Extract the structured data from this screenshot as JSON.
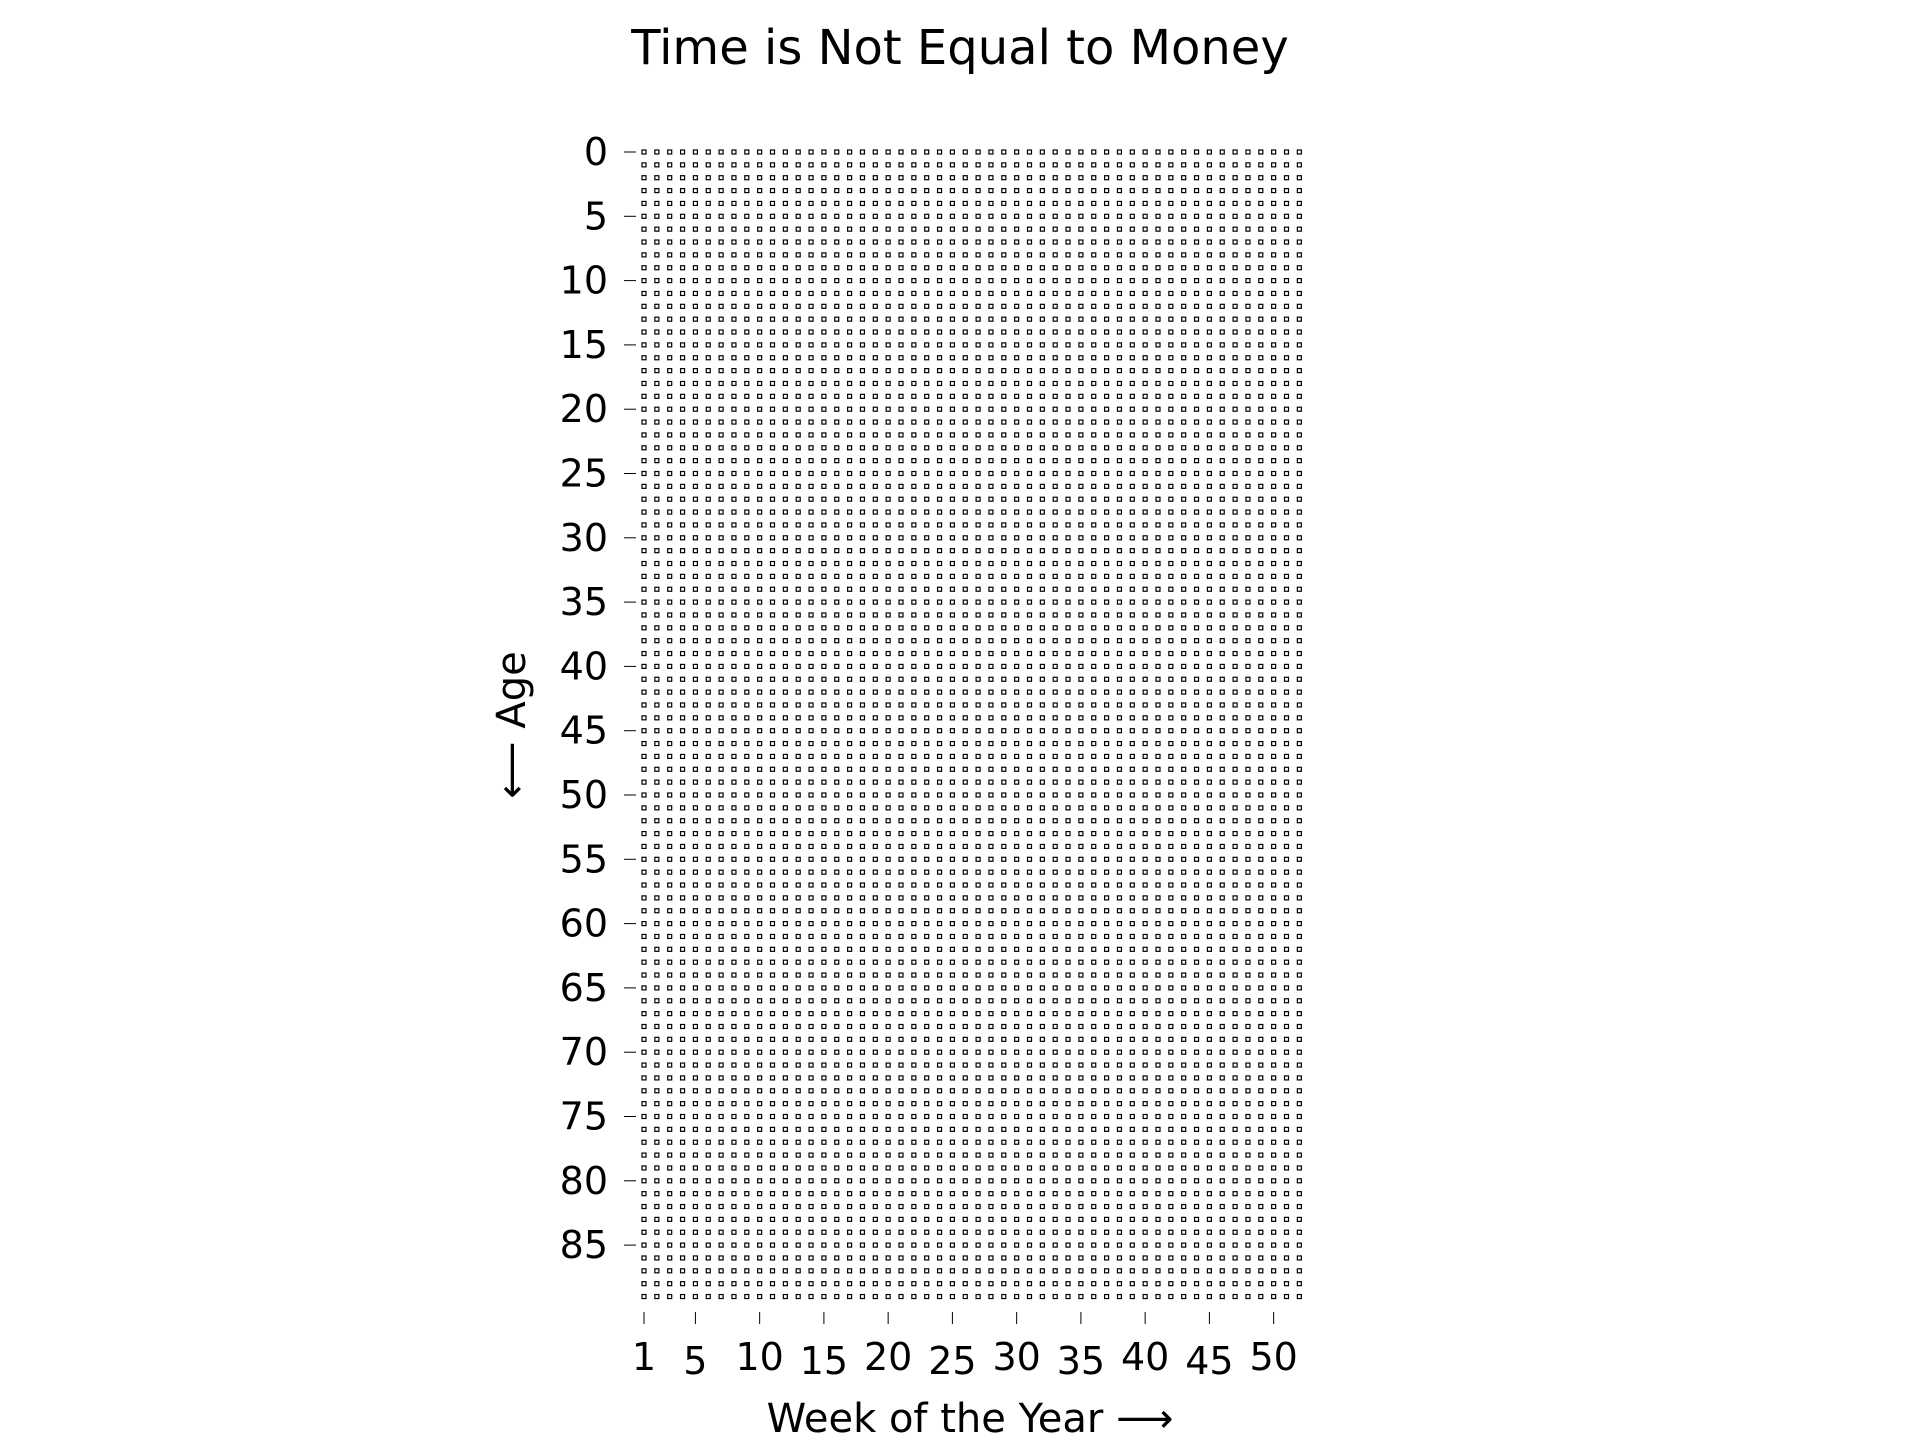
{
  "chart_data": {
    "type": "scatter",
    "title": "Time is Not Equal to Money",
    "xlabel": "Week of the Year  ⟶",
    "ylabel": "⟵  Age",
    "x_ticks": [
      1,
      5,
      10,
      15,
      20,
      25,
      30,
      35,
      40,
      45,
      50
    ],
    "y_ticks": [
      0,
      5,
      10,
      15,
      20,
      25,
      30,
      35,
      40,
      45,
      50,
      55,
      60,
      65,
      70,
      75,
      80,
      85
    ],
    "weeks": 52,
    "years": 90,
    "xlim": [
      1,
      52
    ],
    "ylim": [
      0,
      89
    ],
    "y_inverted": true,
    "marker": "hollow-square",
    "marker_color": "#000000",
    "grid": false,
    "legend": "none"
  }
}
